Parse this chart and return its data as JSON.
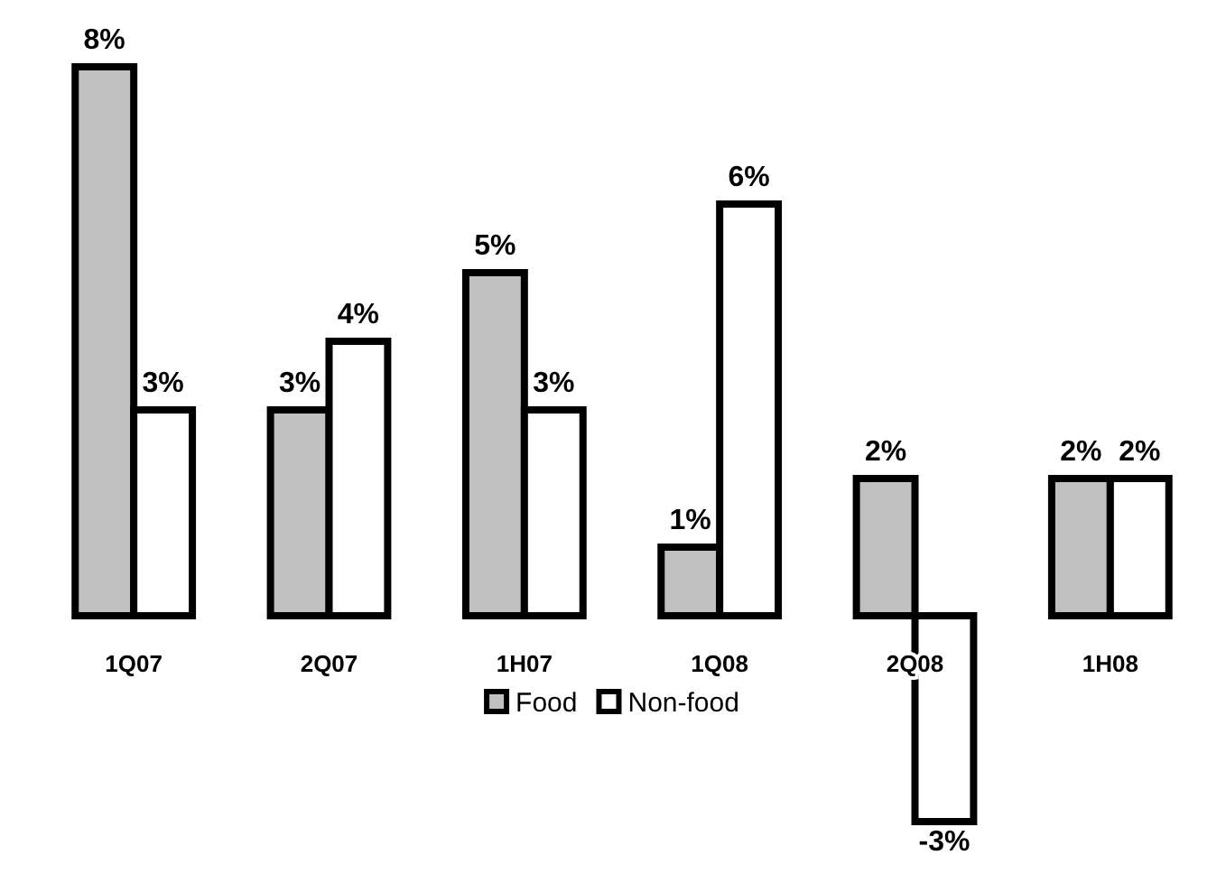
{
  "chart_data": {
    "type": "bar",
    "categories": [
      "1Q07",
      "2Q07",
      "1H07",
      "1Q08",
      "2Q08",
      "1H08"
    ],
    "series": [
      {
        "name": "Food",
        "color": "#c0c0c0",
        "values": [
          8,
          3,
          5,
          1,
          2,
          2
        ],
        "value_labels": [
          "8%",
          "3%",
          "5%",
          "1%",
          "2%",
          "2%"
        ]
      },
      {
        "name": "Non-food",
        "color": "#ffffff",
        "values": [
          3,
          4,
          3,
          6,
          -3,
          2
        ],
        "value_labels": [
          "3%",
          "4%",
          "3%",
          "6%",
          "-3%",
          "2%"
        ]
      }
    ],
    "legend": "bottom",
    "grid": false
  }
}
